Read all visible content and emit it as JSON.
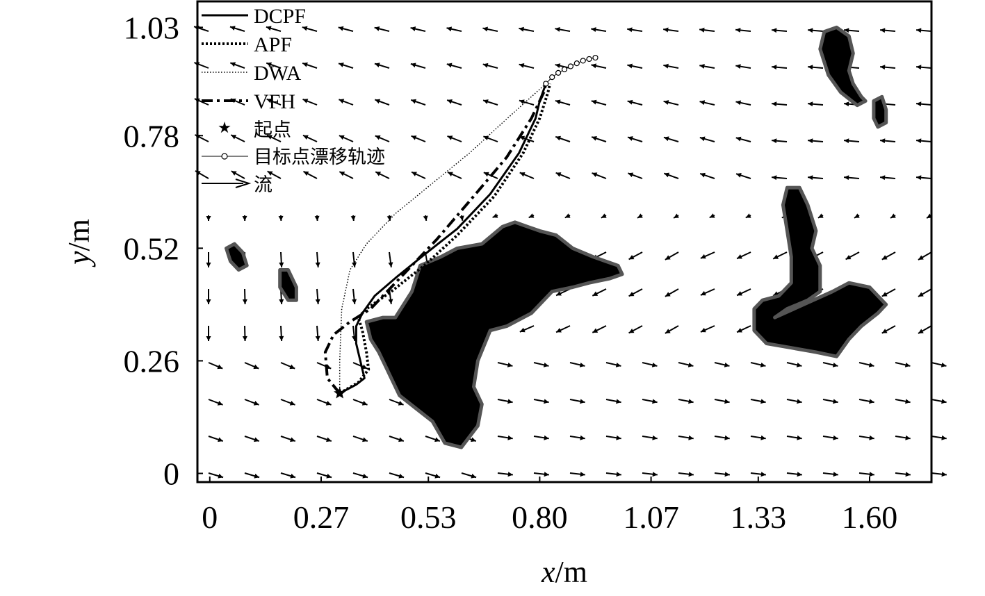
{
  "chart_data": {
    "type": "line",
    "xlabel_var": "x",
    "xlabel_unit": "/m",
    "ylabel_var": "y",
    "ylabel_unit": "/m",
    "xlim": [
      -0.03,
      1.75
    ],
    "ylim": [
      -0.02,
      1.09
    ],
    "x_ticks": [
      0,
      0.27,
      0.53,
      0.8,
      1.07,
      1.33,
      1.6
    ],
    "x_tick_labels": [
      "0",
      "0.27",
      "0.53",
      "0.80",
      "1.07",
      "1.33",
      "1.60"
    ],
    "y_ticks": [
      0,
      0.26,
      0.52,
      0.78,
      1.03
    ],
    "y_tick_labels": [
      "0",
      "0.26",
      "0.52",
      "0.78",
      "1.03"
    ],
    "legend_position": "top-left",
    "series": [
      {
        "name": "DCPF",
        "style": "solid",
        "points": [
          [
            0.315,
            0.185
          ],
          [
            0.355,
            0.205
          ],
          [
            0.375,
            0.22
          ],
          [
            0.365,
            0.26
          ],
          [
            0.355,
            0.3
          ],
          [
            0.355,
            0.34
          ],
          [
            0.37,
            0.37
          ],
          [
            0.4,
            0.41
          ],
          [
            0.455,
            0.455
          ],
          [
            0.52,
            0.505
          ],
          [
            0.6,
            0.565
          ],
          [
            0.68,
            0.645
          ],
          [
            0.75,
            0.74
          ],
          [
            0.79,
            0.82
          ],
          [
            0.8,
            0.86
          ],
          [
            0.815,
            0.9
          ]
        ]
      },
      {
        "name": "APF",
        "style": "dotted",
        "points": [
          [
            0.315,
            0.185
          ],
          [
            0.36,
            0.21
          ],
          [
            0.385,
            0.24
          ],
          [
            0.38,
            0.28
          ],
          [
            0.37,
            0.33
          ],
          [
            0.36,
            0.36
          ],
          [
            0.38,
            0.38
          ],
          [
            0.44,
            0.42
          ],
          [
            0.52,
            0.48
          ],
          [
            0.6,
            0.55
          ],
          [
            0.69,
            0.64
          ],
          [
            0.76,
            0.74
          ],
          [
            0.8,
            0.82
          ],
          [
            0.82,
            0.88
          ],
          [
            0.825,
            0.9
          ]
        ]
      },
      {
        "name": "DWA",
        "style": "fine-dotted",
        "points": [
          [
            0.315,
            0.185
          ],
          [
            0.315,
            0.26
          ],
          [
            0.32,
            0.38
          ],
          [
            0.34,
            0.47
          ],
          [
            0.38,
            0.53
          ],
          [
            0.45,
            0.6
          ],
          [
            0.54,
            0.67
          ],
          [
            0.63,
            0.74
          ],
          [
            0.71,
            0.81
          ],
          [
            0.78,
            0.87
          ],
          [
            0.815,
            0.9
          ]
        ]
      },
      {
        "name": "VFH",
        "style": "dash-dot",
        "points": [
          [
            0.315,
            0.185
          ],
          [
            0.285,
            0.22
          ],
          [
            0.28,
            0.28
          ],
          [
            0.3,
            0.32
          ],
          [
            0.34,
            0.35
          ],
          [
            0.39,
            0.38
          ],
          [
            0.46,
            0.45
          ],
          [
            0.55,
            0.54
          ],
          [
            0.64,
            0.64
          ],
          [
            0.72,
            0.73
          ],
          [
            0.78,
            0.82
          ],
          [
            0.81,
            0.88
          ],
          [
            0.815,
            0.9
          ]
        ]
      },
      {
        "name": "目标点漂移轨迹",
        "style": "marker-circle",
        "points": [
          [
            0.815,
            0.9
          ],
          [
            0.83,
            0.915
          ],
          [
            0.845,
            0.925
          ],
          [
            0.86,
            0.933
          ],
          [
            0.875,
            0.94
          ],
          [
            0.89,
            0.947
          ],
          [
            0.905,
            0.953
          ],
          [
            0.92,
            0.957
          ],
          [
            0.935,
            0.96
          ]
        ]
      }
    ],
    "start_point": {
      "name": "起点",
      "x": 0.315,
      "y": 0.185
    },
    "flow_field_name": "流",
    "obstacles": [
      {
        "name": "central-island",
        "points": [
          [
            0.38,
            0.35
          ],
          [
            0.42,
            0.36
          ],
          [
            0.45,
            0.36
          ],
          [
            0.49,
            0.42
          ],
          [
            0.51,
            0.48
          ],
          [
            0.56,
            0.5
          ],
          [
            0.6,
            0.52
          ],
          [
            0.66,
            0.53
          ],
          [
            0.71,
            0.57
          ],
          [
            0.74,
            0.58
          ],
          [
            0.77,
            0.57
          ],
          [
            0.8,
            0.56
          ],
          [
            0.84,
            0.55
          ],
          [
            0.88,
            0.52
          ],
          [
            0.93,
            0.5
          ],
          [
            0.96,
            0.49
          ],
          [
            0.99,
            0.48
          ],
          [
            1.0,
            0.46
          ],
          [
            0.97,
            0.45
          ],
          [
            0.92,
            0.44
          ],
          [
            0.88,
            0.43
          ],
          [
            0.83,
            0.42
          ],
          [
            0.78,
            0.37
          ],
          [
            0.72,
            0.34
          ],
          [
            0.68,
            0.33
          ],
          [
            0.65,
            0.26
          ],
          [
            0.64,
            0.2
          ],
          [
            0.66,
            0.16
          ],
          [
            0.65,
            0.11
          ],
          [
            0.61,
            0.06
          ],
          [
            0.57,
            0.07
          ],
          [
            0.54,
            0.12
          ],
          [
            0.5,
            0.15
          ],
          [
            0.46,
            0.18
          ],
          [
            0.43,
            0.24
          ],
          [
            0.41,
            0.28
          ],
          [
            0.39,
            0.31
          ]
        ]
      },
      {
        "name": "right-island",
        "points": [
          [
            1.37,
            0.36
          ],
          [
            1.4,
            0.38
          ],
          [
            1.45,
            0.4
          ],
          [
            1.48,
            0.42
          ],
          [
            1.48,
            0.48
          ],
          [
            1.46,
            0.52
          ],
          [
            1.47,
            0.56
          ],
          [
            1.45,
            0.62
          ],
          [
            1.43,
            0.66
          ],
          [
            1.4,
            0.66
          ],
          [
            1.39,
            0.62
          ],
          [
            1.4,
            0.56
          ],
          [
            1.41,
            0.5
          ],
          [
            1.41,
            0.44
          ],
          [
            1.38,
            0.41
          ],
          [
            1.34,
            0.4
          ],
          [
            1.32,
            0.38
          ],
          [
            1.32,
            0.33
          ],
          [
            1.35,
            0.3
          ],
          [
            1.41,
            0.29
          ],
          [
            1.47,
            0.28
          ],
          [
            1.52,
            0.27
          ],
          [
            1.55,
            0.31
          ],
          [
            1.58,
            0.34
          ],
          [
            1.62,
            0.37
          ],
          [
            1.64,
            0.39
          ],
          [
            1.6,
            0.43
          ],
          [
            1.55,
            0.44
          ],
          [
            1.51,
            0.42
          ]
        ]
      },
      {
        "name": "top-right-island",
        "points": [
          [
            1.48,
            0.98
          ],
          [
            1.49,
            1.02
          ],
          [
            1.52,
            1.03
          ],
          [
            1.55,
            1.01
          ],
          [
            1.56,
            0.97
          ],
          [
            1.55,
            0.93
          ],
          [
            1.56,
            0.9
          ],
          [
            1.58,
            0.87
          ],
          [
            1.59,
            0.86
          ],
          [
            1.57,
            0.85
          ],
          [
            1.53,
            0.88
          ],
          [
            1.5,
            0.92
          ]
        ]
      },
      {
        "name": "small-island-right",
        "points": [
          [
            1.61,
            0.86
          ],
          [
            1.63,
            0.87
          ],
          [
            1.64,
            0.84
          ],
          [
            1.64,
            0.81
          ],
          [
            1.62,
            0.8
          ],
          [
            1.61,
            0.82
          ]
        ]
      },
      {
        "name": "small-island-left-1",
        "points": [
          [
            0.04,
            0.52
          ],
          [
            0.06,
            0.53
          ],
          [
            0.08,
            0.51
          ],
          [
            0.09,
            0.48
          ],
          [
            0.07,
            0.47
          ],
          [
            0.05,
            0.49
          ]
        ]
      },
      {
        "name": "small-island-left-2",
        "points": [
          [
            0.17,
            0.47
          ],
          [
            0.19,
            0.47
          ],
          [
            0.21,
            0.43
          ],
          [
            0.21,
            0.4
          ],
          [
            0.19,
            0.4
          ],
          [
            0.17,
            0.43
          ]
        ]
      }
    ]
  }
}
